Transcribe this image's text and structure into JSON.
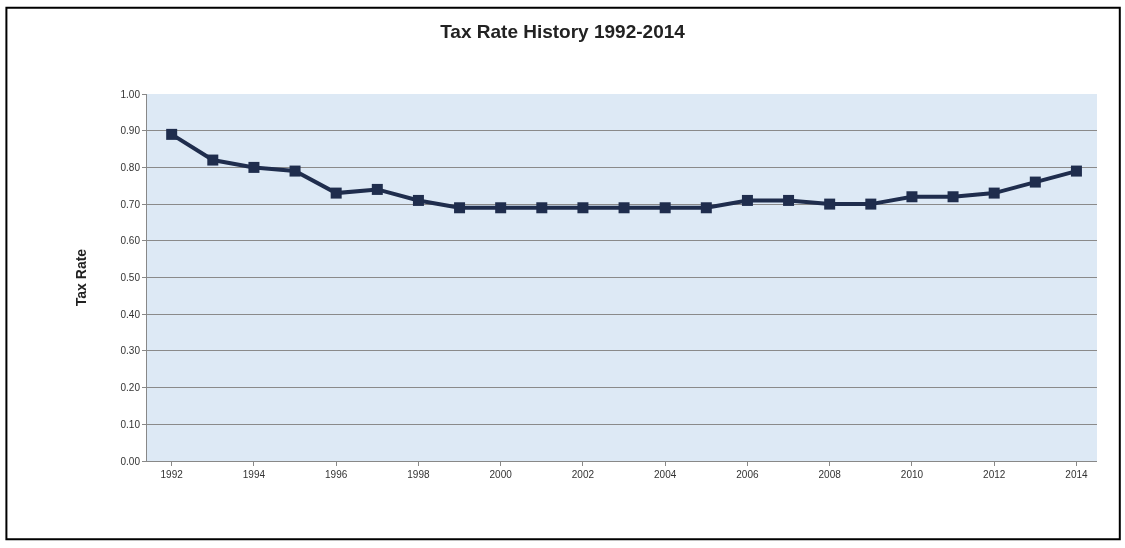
{
  "chart_data": {
    "type": "line",
    "title": "Tax Rate History 1992-2014",
    "ylabel": "Tax Rate",
    "x": [
      1992,
      1993,
      1994,
      1995,
      1996,
      1997,
      1998,
      1999,
      2000,
      2001,
      2002,
      2003,
      2004,
      2005,
      2006,
      2007,
      2008,
      2009,
      2010,
      2011,
      2012,
      2013,
      2014
    ],
    "series": [
      {
        "color": "#1f2d4d",
        "values": [
          0.89,
          0.82,
          0.8,
          0.79,
          0.73,
          0.74,
          0.71,
          0.69,
          0.69,
          0.69,
          0.69,
          0.69,
          0.69,
          0.69,
          0.71,
          0.71,
          0.7,
          0.7,
          0.72,
          0.72,
          0.73,
          0.76,
          0.79
        ]
      }
    ],
    "xlim": [
      1991.4,
      2014.5
    ],
    "xticks": [
      1992,
      1994,
      1996,
      1998,
      2000,
      2002,
      2004,
      2006,
      2008,
      2010,
      2012,
      2014
    ],
    "ylim": [
      0,
      1
    ],
    "yticks": [
      {
        "value": 0,
        "label": "0.00"
      },
      {
        "value": 0.1,
        "label": "0.10"
      },
      {
        "value": 0.2,
        "label": "0.20"
      },
      {
        "value": 0.3,
        "label": "0.30"
      },
      {
        "value": 0.4,
        "label": "0.40"
      },
      {
        "value": 0.5,
        "label": "0.50"
      },
      {
        "value": 0.6,
        "label": "0.60"
      },
      {
        "value": 0.7,
        "label": "0.70"
      },
      {
        "value": 0.8,
        "label": "0.80"
      },
      {
        "value": 0.9,
        "label": "0.90"
      },
      {
        "value": 1,
        "label": "1.00"
      }
    ],
    "grid": "y",
    "marker": "square",
    "line_style": "solid"
  }
}
